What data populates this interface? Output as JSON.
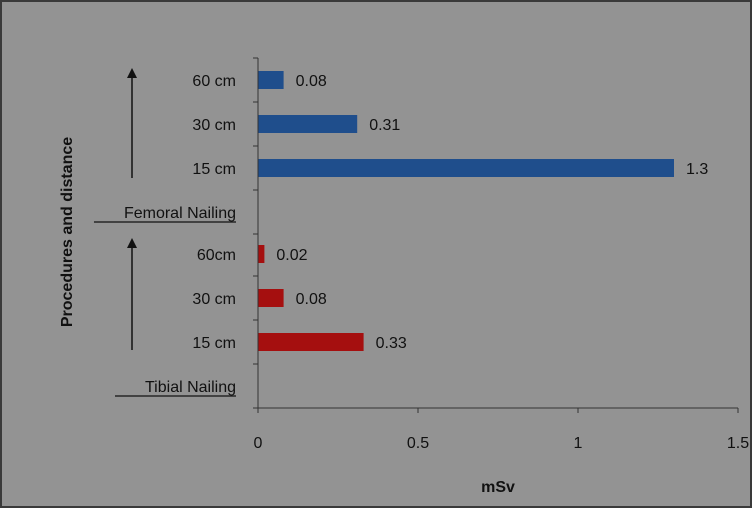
{
  "chart_data": {
    "type": "bar",
    "orientation": "horizontal",
    "xlabel": "mSv",
    "ylabel": "Procedures and distance",
    "xlim": [
      0,
      1.5
    ],
    "xticks": [
      "0",
      "0.5",
      "1",
      "1.5"
    ],
    "grid": false,
    "legend": "none",
    "group_labels": [
      "Femoral Nailing",
      "Tibial Nailing"
    ],
    "bars": [
      {
        "category": "60 cm",
        "value": 0.08,
        "label": "0.08",
        "group": "Femoral Nailing",
        "color": "#1f4e8c"
      },
      {
        "category": "30 cm",
        "value": 0.31,
        "label": "0.31",
        "group": "Femoral Nailing",
        "color": "#1f4e8c"
      },
      {
        "category": "15 cm",
        "value": 1.3,
        "label": "1.3",
        "group": "Femoral Nailing",
        "color": "#1f4e8c"
      },
      {
        "category": "60cm",
        "value": 0.02,
        "label": "0.02",
        "group": "Tibial Nailing",
        "color": "#a50f0f"
      },
      {
        "category": "30 cm",
        "value": 0.08,
        "label": "0.08",
        "group": "Tibial Nailing",
        "color": "#a50f0f"
      },
      {
        "category": "15 cm",
        "value": 0.33,
        "label": "0.33",
        "group": "Tibial Nailing",
        "color": "#a50f0f"
      }
    ]
  }
}
